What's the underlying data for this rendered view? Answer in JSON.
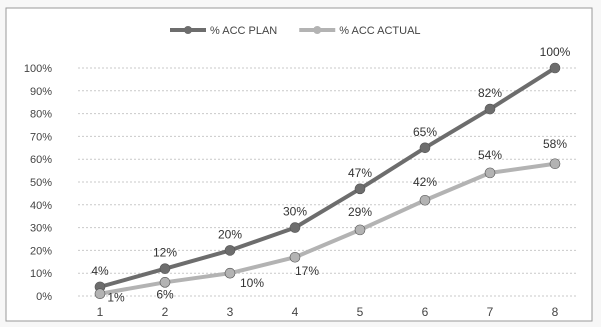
{
  "chart_data": {
    "type": "line",
    "title": "",
    "xlabel": "",
    "ylabel": "",
    "categories": [
      "1",
      "2",
      "3",
      "4",
      "5",
      "6",
      "7",
      "8"
    ],
    "ylim": [
      0,
      100
    ],
    "y_ticks": [
      "0%",
      "10%",
      "20%",
      "30%",
      "40%",
      "50%",
      "60%",
      "70%",
      "80%",
      "90%",
      "100%"
    ],
    "grid": true,
    "legend_position": "top",
    "series": [
      {
        "name": "% ACC PLAN",
        "color": "#6d6d6d",
        "values": [
          4,
          12,
          20,
          30,
          47,
          65,
          82,
          100
        ],
        "labels": [
          "4%",
          "12%",
          "20%",
          "30%",
          "47%",
          "65%",
          "82%",
          "100%"
        ]
      },
      {
        "name": "% ACC ACTUAL",
        "color": "#b3b3b3",
        "values": [
          1,
          6,
          10,
          17,
          29,
          42,
          54,
          58
        ],
        "labels": [
          "1%",
          "6%",
          "10%",
          "17%",
          "29%",
          "42%",
          "54%",
          "58%"
        ]
      }
    ]
  }
}
